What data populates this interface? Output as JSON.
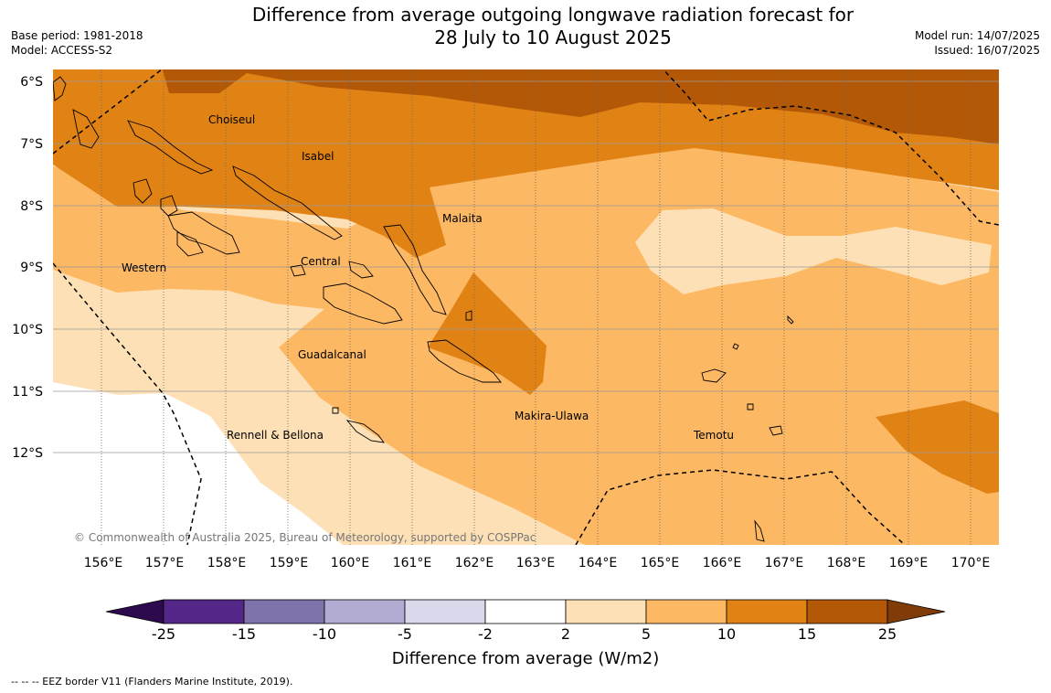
{
  "header": {
    "title_line1": "Difference from average outgoing longwave radiation forecast for",
    "title_line2": "28 July to 10 August 2025",
    "base_period": "Base period: 1981-2018",
    "model": "Model: ACCESS-S2",
    "model_run": "Model run: 14/07/2025",
    "issued": "Issued: 16/07/2025"
  },
  "map": {
    "lat_labels": [
      "6°S",
      "7°S",
      "8°S",
      "9°S",
      "10°S",
      "11°S",
      "12°S"
    ],
    "lon_labels": [
      "156°E",
      "157°E",
      "158°E",
      "159°E",
      "160°E",
      "161°E",
      "162°E",
      "163°E",
      "164°E",
      "165°E",
      "166°E",
      "167°E",
      "168°E",
      "169°E",
      "170°E"
    ],
    "places": {
      "choiseul": "Choiseul",
      "isabel": "Isabel",
      "malaita": "Malaita",
      "western": "Western",
      "central": "Central",
      "guadalcanal": "Guadalcanal",
      "makira": "Makira-Ulawa",
      "temotu": "Temotu",
      "rennell": "Rennell & Bellona"
    },
    "copyright": "© Commonwealth of Australia 2025, Bureau of Meteorology, supported by COSPPac"
  },
  "colorbar": {
    "ticks": [
      "-25",
      "-15",
      "-10",
      "-5",
      "-2",
      "2",
      "5",
      "10",
      "15",
      "25"
    ],
    "title": "Difference from average (W/m2)",
    "colors": [
      "#2d0a4e",
      "#542788",
      "#8073ac",
      "#b2abd2",
      "#d8daeb",
      "#ffffff",
      "#fee0b6",
      "#fdb863",
      "#e08214",
      "#b35806",
      "#7f3b08"
    ]
  },
  "footnote": "--  --  -- EEZ border V11 (Flanders Marine Institute, 2019)."
}
